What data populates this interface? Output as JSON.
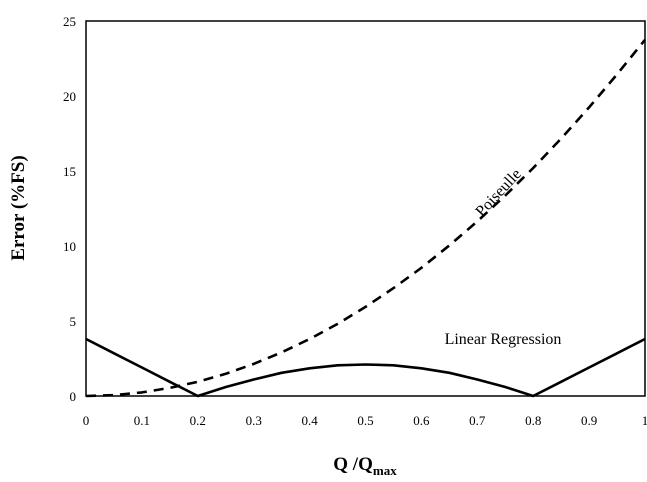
{
  "chart_data": {
    "type": "line",
    "title": "",
    "xlabel": "Q /Q",
    "xlabel_sub": "max",
    "ylabel": "Error (%FS)",
    "xlim": [
      0,
      1
    ],
    "ylim": [
      0,
      25
    ],
    "x_ticks": [
      "0",
      "0.1",
      "0.2",
      "0.3",
      "0.4",
      "0.5",
      "0.6",
      "0.7",
      "0.8",
      "0.9",
      "1"
    ],
    "y_ticks": [
      "0",
      "5",
      "10",
      "15",
      "20",
      "25"
    ],
    "grid": false,
    "legend": "none",
    "series": [
      {
        "name": "Poiseulle",
        "style": "dashed",
        "color": "#000000",
        "x": [
          0,
          0.05,
          0.1,
          0.15,
          0.2,
          0.25,
          0.3,
          0.35,
          0.4,
          0.45,
          0.5,
          0.55,
          0.6,
          0.65,
          0.7,
          0.75,
          0.8,
          0.85,
          0.9,
          0.95,
          1.0
        ],
        "y": [
          0,
          0.06,
          0.24,
          0.54,
          0.95,
          1.48,
          2.14,
          2.91,
          3.8,
          4.81,
          5.94,
          7.19,
          8.55,
          10.04,
          11.64,
          13.37,
          15.2,
          17.16,
          19.24,
          21.44,
          23.75
        ]
      },
      {
        "name": "Linear Regression",
        "style": "solid",
        "color": "#000000",
        "x": [
          0,
          0.05,
          0.1,
          0.15,
          0.2,
          0.25,
          0.3,
          0.35,
          0.4,
          0.45,
          0.5,
          0.55,
          0.6,
          0.65,
          0.7,
          0.75,
          0.8,
          0.85,
          0.9,
          0.95,
          1.0
        ],
        "y": [
          3.8,
          2.85,
          1.9,
          0.95,
          0.0,
          0.6,
          1.1,
          1.55,
          1.85,
          2.05,
          2.1,
          2.05,
          1.85,
          1.55,
          1.1,
          0.6,
          0.0,
          0.95,
          1.9,
          2.85,
          3.8
        ]
      }
    ]
  }
}
